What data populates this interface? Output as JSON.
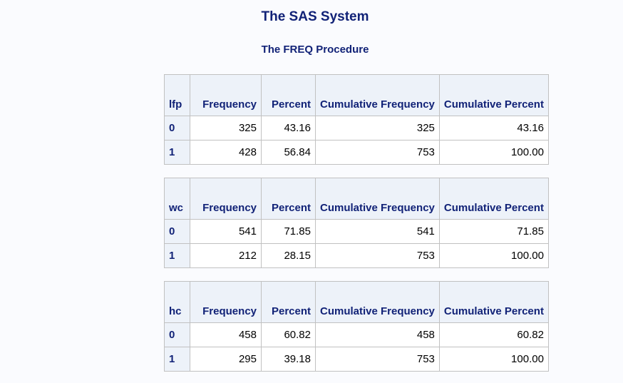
{
  "title": "The SAS System",
  "subtitle": "The FREQ Procedure",
  "tables": [
    {
      "var": "lfp",
      "headers": [
        "Frequency",
        "Percent",
        "Cumulative Frequency",
        "Cumulative Percent"
      ],
      "rows": [
        {
          "level": "0",
          "freq": "325",
          "pct": "43.16",
          "cumfreq": "325",
          "cumpct": "43.16"
        },
        {
          "level": "1",
          "freq": "428",
          "pct": "56.84",
          "cumfreq": "753",
          "cumpct": "100.00"
        }
      ]
    },
    {
      "var": "wc",
      "headers": [
        "Frequency",
        "Percent",
        "Cumulative Frequency",
        "Cumulative Percent"
      ],
      "rows": [
        {
          "level": "0",
          "freq": "541",
          "pct": "71.85",
          "cumfreq": "541",
          "cumpct": "71.85"
        },
        {
          "level": "1",
          "freq": "212",
          "pct": "28.15",
          "cumfreq": "753",
          "cumpct": "100.00"
        }
      ]
    },
    {
      "var": "hc",
      "headers": [
        "Frequency",
        "Percent",
        "Cumulative Frequency",
        "Cumulative Percent"
      ],
      "rows": [
        {
          "level": "0",
          "freq": "458",
          "pct": "60.82",
          "cumfreq": "458",
          "cumpct": "60.82"
        },
        {
          "level": "1",
          "freq": "295",
          "pct": "39.18",
          "cumfreq": "753",
          "cumpct": "100.00"
        }
      ]
    }
  ]
}
